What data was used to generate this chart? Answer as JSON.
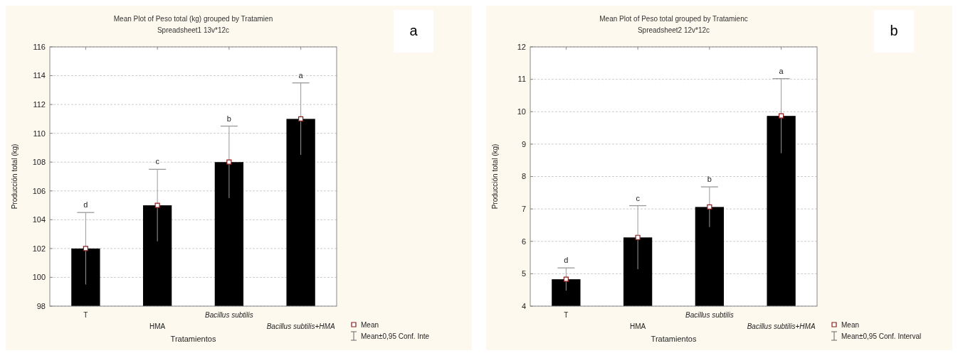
{
  "chart_data": [
    {
      "type": "bar",
      "title": "Mean Plot of Peso total (kg) grouped by  Tratamien",
      "subtitle": "Spreadsheet1 13v*12c",
      "xlabel": "Tratamientos",
      "ylabel": "Producción total (kg)",
      "categories": [
        "T",
        "HMA",
        "Bacillus subtilis",
        "Bacillus subtilis+HMA"
      ],
      "series": [
        {
          "color": "#000000",
          "values": [
            102,
            105,
            108,
            111
          ],
          "errors": [
            2.5,
            2.5,
            2.5,
            2.5
          ]
        },
        {
          "type": "scatter",
          "name": "Mean",
          "color": "#ffffff",
          "x": [
            "T",
            "HMA",
            "Bacillus subtilis",
            "Bacillus subtilis+HMA"
          ],
          "values": [
            102,
            105,
            108,
            111
          ]
        }
      ],
      "ylim": [
        98,
        116
      ],
      "yticks": [
        98,
        100,
        102,
        104,
        106,
        108,
        110,
        112,
        114,
        116
      ],
      "grid": "y",
      "legend": "bottom right",
      "marker": "square",
      "annotations": [
        "a",
        "Mean±0,95 Conf. Inte",
        {
          "text": "d",
          "x": "T",
          "y": 104.5
        },
        {
          "text": "c",
          "x": "HMA",
          "y": 107.5
        },
        {
          "text": "b",
          "x": "Bacillus subtilis",
          "y": 110.5
        },
        {
          "text": "a",
          "x": "Bacillus subtilis+HMA",
          "y": 113.5
        }
      ]
    },
    {
      "type": "bar",
      "title": "Mean Plot of Peso total grouped by  Tratamienc",
      "subtitle": "Spreadsheet2 12v*12c",
      "xlabel": "Tratamientos",
      "ylabel": "Producción total (kg)",
      "categories": [
        "T",
        "HMA",
        "Bacillus subtilis",
        "Bacillus subtilis+HMA"
      ],
      "series": [
        {
          "color": "#000000",
          "values": [
            4.83,
            6.12,
            7.06,
            9.87
          ],
          "errors": [
            0.35,
            0.98,
            0.62,
            1.15
          ]
        },
        {
          "type": "scatter",
          "name": "Mean",
          "color": "#ffffff",
          "x": [
            "T",
            "HMA",
            "Bacillus subtilis",
            "Bacillus subtilis+HMA"
          ],
          "values": [
            4.83,
            6.12,
            7.06,
            9.87
          ]
        }
      ],
      "ylim": [
        4,
        12
      ],
      "yticks": [
        4,
        5,
        6,
        7,
        8,
        9,
        10,
        11,
        12
      ],
      "grid": "y",
      "legend": "bottom right",
      "marker": "square",
      "annotations": [
        "b",
        "Mean±0,95 Conf. Interval",
        {
          "text": "d",
          "x": "T",
          "y": 5.18
        },
        {
          "text": "c",
          "x": "HMA",
          "y": 7.1
        },
        {
          "text": "b",
          "x": "Bacillus subtilis",
          "y": 7.68
        },
        {
          "text": "a",
          "x": "Bacillus subtilis+HMA",
          "y": 11.02
        }
      ]
    }
  ]
}
